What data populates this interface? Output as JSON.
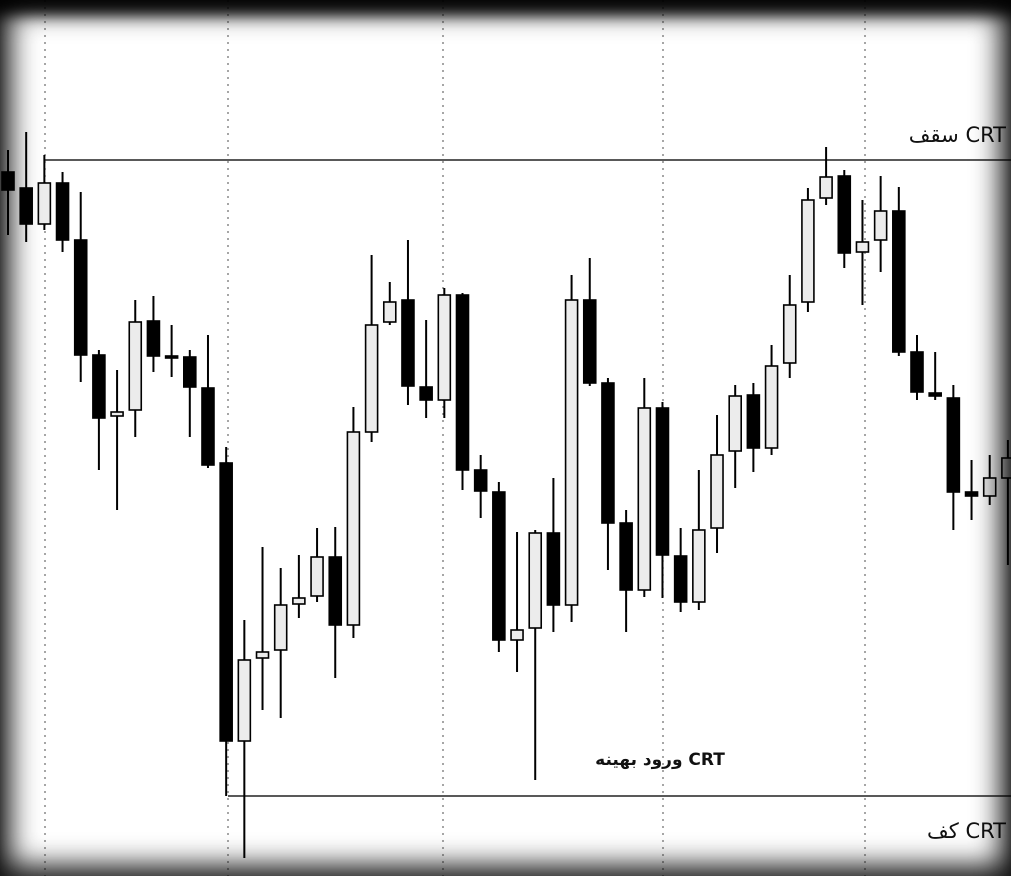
{
  "chart_data": {
    "type": "candlestick",
    "ylim": [
      0,
      876
    ],
    "up_color": "#ececec",
    "down_color": "#000000",
    "open": [
      704,
      688,
      652,
      693,
      636,
      521,
      460,
      466,
      555,
      520,
      519,
      488,
      413,
      135,
      218,
      226,
      272,
      280,
      319,
      251,
      444,
      554,
      576,
      489,
      476,
      581,
      406,
      384,
      236,
      248,
      343,
      271,
      576,
      493,
      353,
      286,
      468,
      320,
      274,
      348,
      425,
      481,
      428,
      513,
      574,
      678,
      700,
      624,
      636,
      665,
      524,
      483,
      478,
      384,
      380,
      398
    ],
    "high": [
      726,
      744,
      721,
      704,
      684,
      526,
      506,
      576,
      580,
      551,
      526,
      541,
      429,
      256,
      329,
      308,
      321,
      348,
      349,
      469,
      621,
      594,
      636,
      556,
      588,
      583,
      421,
      394,
      344,
      346,
      398,
      601,
      618,
      498,
      366,
      498,
      474,
      348,
      406,
      461,
      491,
      493,
      531,
      601,
      688,
      729,
      706,
      676,
      700,
      689,
      541,
      524,
      491,
      416,
      421,
      436
    ],
    "low": [
      641,
      634,
      646,
      624,
      494,
      406,
      366,
      439,
      504,
      499,
      439,
      408,
      80,
      18,
      166,
      158,
      258,
      274,
      198,
      238,
      434,
      551,
      471,
      458,
      458,
      386,
      358,
      224,
      204,
      96,
      244,
      254,
      490,
      306,
      244,
      279,
      278,
      264,
      266,
      323,
      388,
      404,
      421,
      498,
      564,
      671,
      608,
      571,
      604,
      520,
      476,
      476,
      346,
      356,
      371,
      311
    ],
    "close": [
      686,
      652,
      693,
      636,
      521,
      458,
      464,
      554,
      520,
      518,
      489,
      411,
      135,
      216,
      224,
      271,
      278,
      319,
      251,
      444,
      551,
      574,
      490,
      476,
      581,
      406,
      385,
      236,
      246,
      343,
      271,
      576,
      493,
      353,
      286,
      468,
      321,
      274,
      346,
      421,
      480,
      428,
      510,
      571,
      676,
      699,
      623,
      634,
      665,
      524,
      484,
      480,
      384,
      380,
      398,
      418
    ],
    "levels": [
      {
        "label": "سقف CRT",
        "value": 716
      },
      {
        "label": "کف CRT",
        "value": 80
      }
    ],
    "annotation": "ورود بهینه CRT"
  }
}
